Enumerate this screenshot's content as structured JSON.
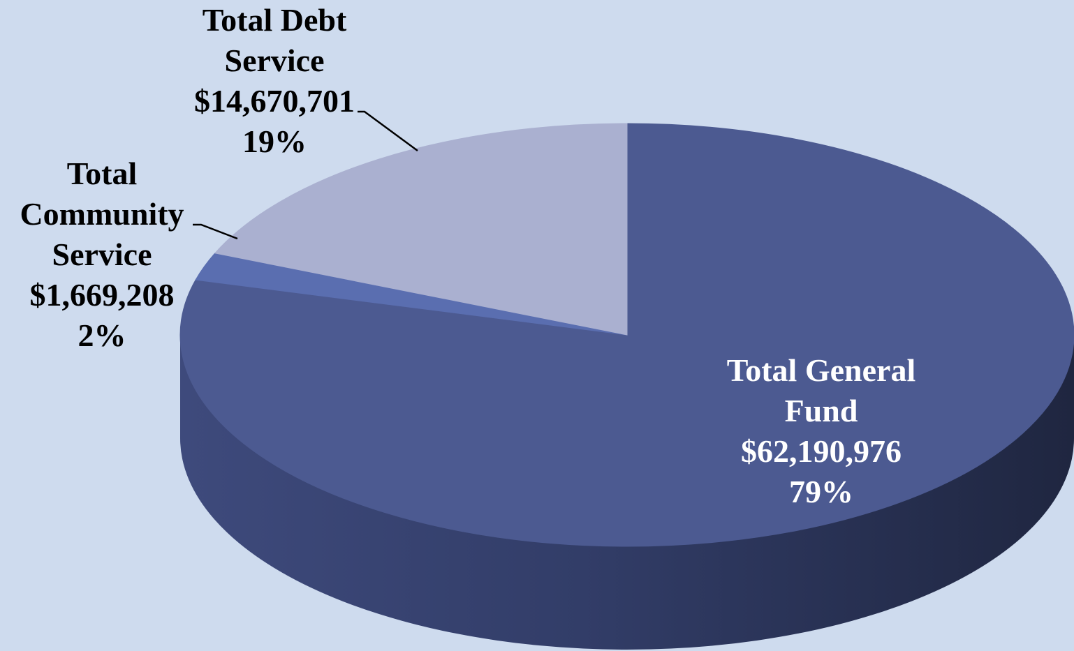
{
  "chart_data": {
    "type": "pie",
    "style": "3d",
    "slices": [
      {
        "name": "Total General Fund",
        "value": 62190976,
        "percent": 79,
        "color": "#4c5a91",
        "label_color": "#ffffff",
        "label_lines": [
          "Total General",
          "Fund",
          "$62,190,976",
          "79%"
        ]
      },
      {
        "name": "Total Community Service",
        "value": 1669208,
        "percent": 2,
        "color": "#5a6eb0",
        "label_color": "#000000",
        "label_lines": [
          "Total",
          "Community",
          "Service",
          "$1,669,208",
          "2%"
        ]
      },
      {
        "name": "Total Debt Service",
        "value": 14670701,
        "percent": 19,
        "color": "#aab0d0",
        "label_color": "#000000",
        "label_lines": [
          "Total Debt",
          "Service",
          "$14,670,701",
          "19%"
        ]
      }
    ]
  }
}
